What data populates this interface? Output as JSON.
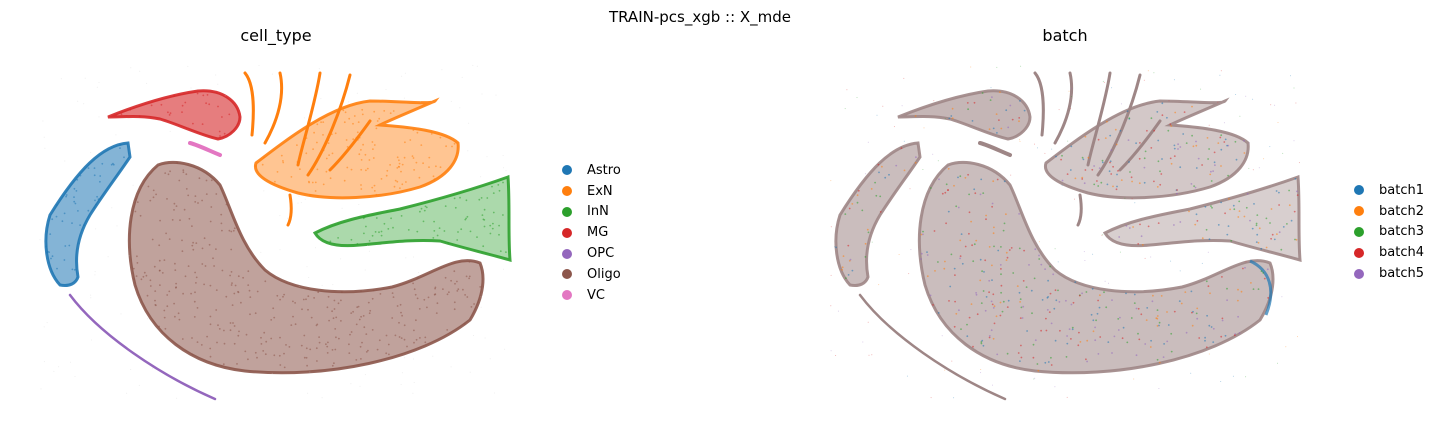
{
  "figure": {
    "title": "TRAIN-pcs_xgb :: X_mde"
  },
  "chart_data": [
    {
      "type": "scatter",
      "title": "cell_type",
      "xlabel": "",
      "ylabel": "",
      "axes_visible": false,
      "grid": false,
      "legend_position": "right",
      "legend": [
        {
          "label": "Astro",
          "color": "#1f77b4"
        },
        {
          "label": "ExN",
          "color": "#ff7f0e"
        },
        {
          "label": "InN",
          "color": "#2ca02c"
        },
        {
          "label": "MG",
          "color": "#d62728"
        },
        {
          "label": "OPC",
          "color": "#9467bd"
        },
        {
          "label": "Oligo",
          "color": "#8c564b"
        },
        {
          "label": "VC",
          "color": "#e377c2"
        }
      ]
    },
    {
      "type": "scatter",
      "title": "batch",
      "xlabel": "",
      "ylabel": "",
      "axes_visible": false,
      "grid": false,
      "legend_position": "right",
      "legend": [
        {
          "label": "batch1",
          "color": "#1f77b4"
        },
        {
          "label": "batch2",
          "color": "#ff7f0e"
        },
        {
          "label": "batch3",
          "color": "#2ca02c"
        },
        {
          "label": "batch4",
          "color": "#d62728"
        },
        {
          "label": "batch5",
          "color": "#9467bd"
        }
      ]
    }
  ]
}
